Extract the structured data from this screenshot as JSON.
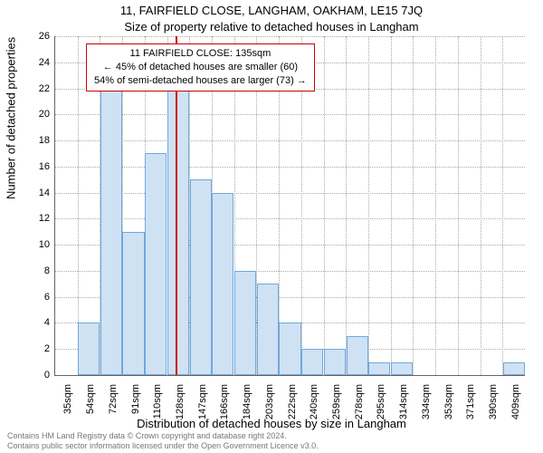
{
  "chart": {
    "type": "histogram",
    "title_main": "11, FAIRFIELD CLOSE, LANGHAM, OAKHAM, LE15 7JQ",
    "title_sub": "Size of property relative to detached houses in Langham",
    "y_axis_title": "Number of detached properties",
    "x_axis_title": "Distribution of detached houses by size in Langham",
    "ylim": [
      0,
      26
    ],
    "ytick_step": 2,
    "x_categories": [
      "35sqm",
      "54sqm",
      "72sqm",
      "91sqm",
      "110sqm",
      "128sqm",
      "147sqm",
      "166sqm",
      "184sqm",
      "203sqm",
      "222sqm",
      "240sqm",
      "259sqm",
      "278sqm",
      "295sqm",
      "314sqm",
      "334sqm",
      "353sqm",
      "371sqm",
      "390sqm",
      "409sqm"
    ],
    "bar_values": [
      0,
      4,
      22,
      11,
      17,
      22,
      15,
      14,
      8,
      7,
      4,
      2,
      2,
      3,
      1,
      1,
      0,
      0,
      0,
      0,
      1
    ],
    "bar_fill": "#cfe2f3",
    "bar_border": "#6fa8dc",
    "background_color": "#ffffff",
    "grid_color": "#aaaaaa",
    "axis_color": "#666666",
    "marker": {
      "category_index_after": 5,
      "fraction_into_next": 0.38,
      "color": "#cc0000"
    },
    "info_box": {
      "line1": "11 FAIRFIELD CLOSE: 135sqm",
      "line2": "← 45% of detached houses are smaller (60)",
      "line3": "54% of semi-detached houses are larger (73) →",
      "border_color": "#cc0000"
    },
    "title_fontsize": 13,
    "label_fontsize": 13,
    "tick_fontsize": 11
  },
  "footer": {
    "line1": "Contains HM Land Registry data © Crown copyright and database right 2024.",
    "line2": "Contains public sector information licensed under the Open Government Licence v3.0."
  }
}
